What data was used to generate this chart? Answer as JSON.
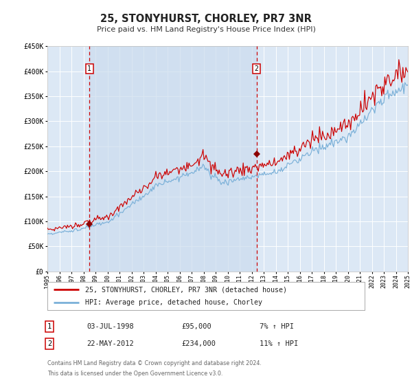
{
  "title": "25, STONYHURST, CHORLEY, PR7 3NR",
  "subtitle": "Price paid vs. HM Land Registry's House Price Index (HPI)",
  "bg_color": "#ffffff",
  "chart_bg_color": "#dce8f5",
  "grid_color": "#ffffff",
  "red_line_color": "#cc0000",
  "blue_line_color": "#7ab0d8",
  "highlight_color": "#8b0000",
  "vline_color": "#cc0000",
  "shade_color": "#ccdcee",
  "ylim": [
    0,
    450000
  ],
  "yticks": [
    0,
    50000,
    100000,
    150000,
    200000,
    250000,
    300000,
    350000,
    400000,
    450000
  ],
  "x_start_year": 1995,
  "x_end_year": 2025,
  "point1_date": "03-JUL-1998",
  "point1_price": 95000,
  "point1_hpi_pct": "7%",
  "point1_year": 1998.5,
  "point2_date": "22-MAY-2012",
  "point2_price": 234000,
  "point2_hpi_pct": "11%",
  "point2_year": 2012.4,
  "legend_line1": "25, STONYHURST, CHORLEY, PR7 3NR (detached house)",
  "legend_line2": "HPI: Average price, detached house, Chorley",
  "table_row1_num": "1",
  "table_row1_date": "03-JUL-1998",
  "table_row1_price": "£95,000",
  "table_row1_pct": "7% ↑ HPI",
  "table_row2_num": "2",
  "table_row2_date": "22-MAY-2012",
  "table_row2_price": "£234,000",
  "table_row2_pct": "11% ↑ HPI",
  "footnote1": "Contains HM Land Registry data © Crown copyright and database right 2024.",
  "footnote2": "This data is licensed under the Open Government Licence v3.0."
}
